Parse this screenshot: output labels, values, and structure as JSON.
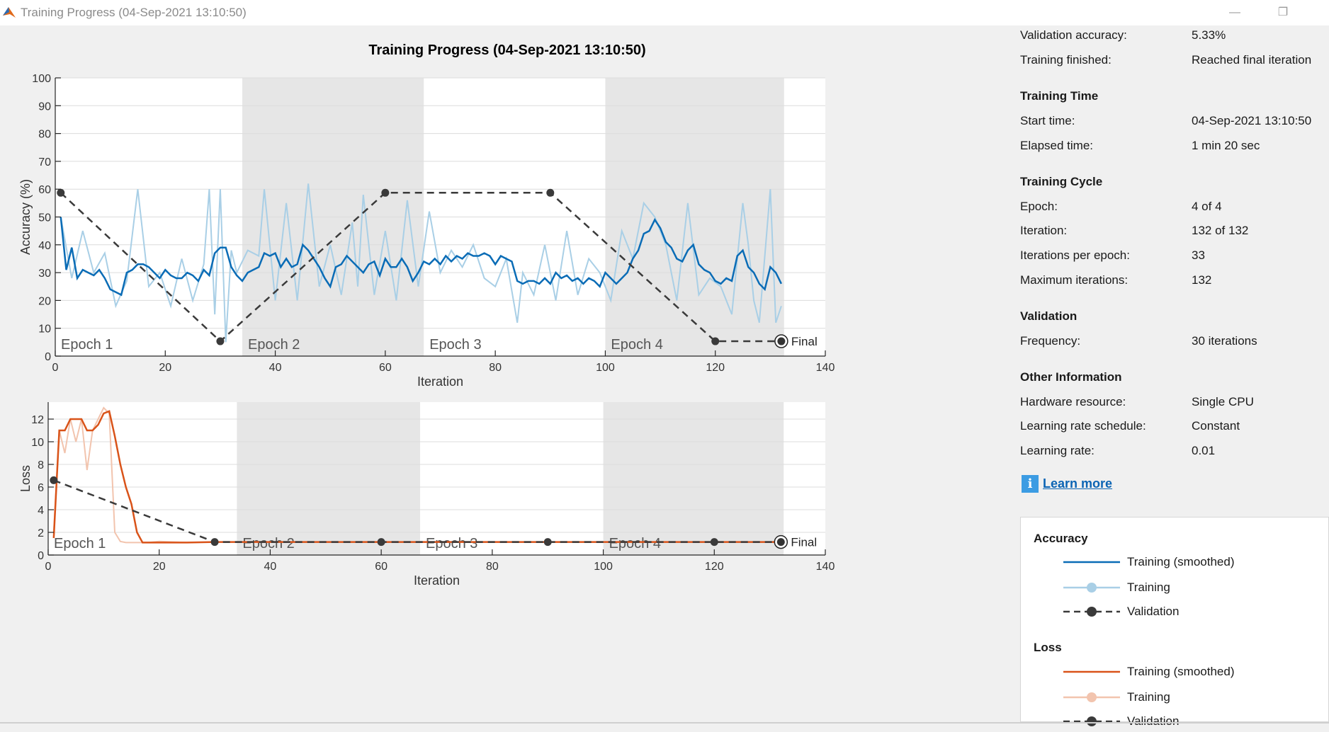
{
  "window": {
    "title": "Training Progress (04-Sep-2021 13:10:50)",
    "minimize_glyph": "—",
    "restore_glyph": "❐"
  },
  "plot_title": "Training Progress (04-Sep-2021 13:10:50)",
  "chart_data": [
    {
      "type": "line",
      "name": "accuracy-chart",
      "xlabel": "Iteration",
      "ylabel": "Accuracy (%)",
      "xlim": [
        0,
        140
      ],
      "ylim": [
        0,
        100
      ],
      "xticks": [
        0,
        20,
        40,
        60,
        80,
        100,
        120,
        140
      ],
      "yticks": [
        0,
        10,
        20,
        30,
        40,
        50,
        60,
        70,
        80,
        90,
        100
      ],
      "grid": true,
      "epoch_bands": [
        {
          "label": "Epoch 1",
          "start": 0,
          "end": 34,
          "shaded": false
        },
        {
          "label": "Epoch 2",
          "start": 34,
          "end": 67,
          "shaded": true
        },
        {
          "label": "Epoch 3",
          "start": 67,
          "end": 100,
          "shaded": false
        },
        {
          "label": "Epoch 4",
          "start": 100,
          "end": 132.5,
          "shaded": true
        }
      ],
      "final_label": "Final",
      "series": [
        {
          "name": "Training",
          "style": "raw",
          "color": "#a9cfe6",
          "x": [
            1,
            3,
            5,
            7,
            9,
            11,
            13,
            15,
            17,
            19,
            21,
            23,
            25,
            27,
            28,
            29,
            30,
            31,
            32,
            33,
            35,
            37,
            38,
            40,
            42,
            44,
            46,
            48,
            50,
            52,
            54,
            55,
            56,
            58,
            60,
            62,
            64,
            66,
            68,
            70,
            72,
            74,
            76,
            78,
            80,
            82,
            84,
            85,
            87,
            89,
            91,
            93,
            95,
            97,
            99,
            101,
            103,
            105,
            107,
            109,
            111,
            113,
            115,
            117,
            119,
            121,
            123,
            125,
            126,
            127,
            128,
            130,
            131,
            132
          ],
          "y": [
            50,
            28,
            45,
            30,
            37,
            18,
            27,
            60,
            25,
            30,
            18,
            35,
            20,
            33,
            60,
            15,
            60,
            5,
            38,
            30,
            38,
            36,
            60,
            20,
            55,
            20,
            62,
            25,
            40,
            22,
            48,
            25,
            58,
            22,
            45,
            20,
            56,
            25,
            52,
            30,
            38,
            32,
            40,
            28,
            25,
            35,
            12,
            30,
            22,
            40,
            20,
            45,
            22,
            35,
            30,
            20,
            45,
            35,
            55,
            50,
            40,
            20,
            55,
            22,
            28,
            25,
            15,
            55,
            40,
            20,
            12,
            60,
            12,
            18
          ]
        },
        {
          "name": "Training (smoothed)",
          "style": "smoothed",
          "color": "#0a6cb6",
          "x": [
            1,
            2,
            3,
            4,
            5,
            6,
            7,
            8,
            9,
            10,
            11,
            12,
            13,
            14,
            15,
            16,
            17,
            18,
            19,
            20,
            21,
            22,
            23,
            24,
            25,
            26,
            27,
            28,
            29,
            30,
            31,
            32,
            33,
            34,
            35,
            36,
            37,
            38,
            39,
            40,
            41,
            42,
            43,
            44,
            45,
            46,
            47,
            48,
            49,
            50,
            51,
            52,
            53,
            54,
            55,
            56,
            57,
            58,
            59,
            60,
            61,
            62,
            63,
            64,
            65,
            66,
            67,
            68,
            69,
            70,
            71,
            72,
            73,
            74,
            75,
            76,
            77,
            78,
            79,
            80,
            81,
            82,
            83,
            84,
            85,
            86,
            87,
            88,
            89,
            90,
            91,
            92,
            93,
            94,
            95,
            96,
            97,
            98,
            99,
            100,
            101,
            102,
            103,
            104,
            105,
            106,
            107,
            108,
            109,
            110,
            111,
            112,
            113,
            114,
            115,
            116,
            117,
            118,
            119,
            120,
            121,
            122,
            123,
            124,
            125,
            126,
            127,
            128,
            129,
            130,
            131,
            132
          ],
          "y": [
            50,
            31,
            39,
            28,
            31,
            30,
            29,
            31,
            28,
            24,
            23,
            22,
            30,
            31,
            33,
            33,
            32,
            30,
            28,
            31,
            29,
            28,
            28,
            30,
            29,
            27,
            31,
            29,
            37,
            39,
            39,
            32,
            29,
            27,
            30,
            31,
            32,
            37,
            36,
            37,
            32,
            35,
            32,
            33,
            40,
            38,
            35,
            32,
            28,
            25,
            32,
            33,
            36,
            34,
            32,
            30,
            33,
            34,
            29,
            35,
            32,
            32,
            35,
            32,
            27,
            30,
            34,
            33,
            35,
            33,
            36,
            34,
            36,
            35,
            37,
            36,
            36,
            37,
            36,
            33,
            36,
            35,
            34,
            27,
            26,
            27,
            27,
            26,
            28,
            26,
            30,
            28,
            29,
            27,
            28,
            26,
            28,
            27,
            25,
            30,
            28,
            26,
            28,
            30,
            35,
            38,
            44,
            45,
            49,
            46,
            41,
            39,
            35,
            34,
            38,
            40,
            33,
            31,
            30,
            27,
            26,
            28,
            27,
            36,
            38,
            32,
            30,
            26,
            24,
            32,
            30,
            26
          ]
        },
        {
          "name": "Validation",
          "style": "validation",
          "color": "#3a3a3a",
          "x": [
            1,
            30,
            60,
            90,
            120,
            132
          ],
          "y": [
            58.7,
            5.33,
            58.7,
            58.7,
            5.33,
            5.33
          ]
        }
      ]
    },
    {
      "type": "line",
      "name": "loss-chart",
      "xlabel": "Iteration",
      "ylabel": "Loss",
      "xlim": [
        0,
        140
      ],
      "ylim": [
        0,
        13.5
      ],
      "xticks": [
        0,
        20,
        40,
        60,
        80,
        100,
        120,
        140
      ],
      "yticks": [
        0,
        2,
        4,
        6,
        8,
        10,
        12
      ],
      "grid": true,
      "epoch_bands": [
        {
          "label": "Epoch 1",
          "start": 0,
          "end": 34,
          "shaded": false
        },
        {
          "label": "Epoch 2",
          "start": 34,
          "end": 67,
          "shaded": true
        },
        {
          "label": "Epoch 3",
          "start": 67,
          "end": 100,
          "shaded": false
        },
        {
          "label": "Epoch 4",
          "start": 100,
          "end": 132.5,
          "shaded": true
        }
      ],
      "final_label": "Final",
      "series": [
        {
          "name": "Training",
          "style": "raw",
          "color": "#f2c4ae",
          "x": [
            1,
            2,
            3,
            4,
            5,
            6,
            7,
            8,
            9,
            10,
            11,
            12,
            13,
            14,
            15,
            16,
            17,
            18,
            20,
            25,
            30,
            40,
            50,
            60,
            70,
            80,
            90,
            100,
            110,
            120,
            132
          ],
          "y": [
            2,
            11,
            9,
            12,
            10,
            12,
            7.5,
            11,
            12,
            13,
            12.5,
            2,
            1.2,
            1.1,
            1.1,
            1.1,
            1.1,
            1.1,
            1.2,
            1.1,
            1.15,
            1.15,
            1.15,
            1.15,
            1.15,
            1.15,
            1.15,
            1.15,
            1.15,
            1.15,
            1.15
          ]
        },
        {
          "name": "Training (smoothed)",
          "style": "smoothed",
          "color": "#d95319",
          "x": [
            1,
            2,
            3,
            4,
            5,
            6,
            7,
            8,
            9,
            10,
            11,
            12,
            13,
            14,
            15,
            16,
            17,
            20,
            25,
            30,
            40,
            50,
            60,
            70,
            80,
            90,
            100,
            110,
            120,
            132
          ],
          "y": [
            1.5,
            11,
            11,
            12,
            12,
            12,
            11,
            11,
            11.5,
            12.5,
            12.7,
            10.5,
            8,
            6,
            4.5,
            2,
            1.1,
            1.1,
            1.1,
            1.15,
            1.15,
            1.15,
            1.15,
            1.15,
            1.15,
            1.15,
            1.15,
            1.15,
            1.15,
            1.15
          ]
        },
        {
          "name": "Validation",
          "style": "validation",
          "color": "#3a3a3a",
          "x": [
            1,
            30,
            60,
            90,
            120,
            132
          ],
          "y": [
            6.6,
            1.15,
            1.15,
            1.15,
            1.15,
            1.15
          ]
        }
      ]
    }
  ],
  "info": {
    "validation_accuracy": {
      "label": "Validation accuracy:",
      "value": "5.33%"
    },
    "training_finished": {
      "label": "Training finished:",
      "value": "Reached final iteration"
    },
    "training_time": {
      "heading": "Training Time",
      "start_time": {
        "label": "Start time:",
        "value": "04-Sep-2021 13:10:50"
      },
      "elapsed_time": {
        "label": "Elapsed time:",
        "value": "1 min 20 sec"
      }
    },
    "training_cycle": {
      "heading": "Training Cycle",
      "epoch": {
        "label": "Epoch:",
        "value": "4 of 4"
      },
      "iteration": {
        "label": "Iteration:",
        "value": "132 of 132"
      },
      "iterations_per_epoch": {
        "label": "Iterations per epoch:",
        "value": "33"
      },
      "max_iterations": {
        "label": "Maximum iterations:",
        "value": "132"
      }
    },
    "validation": {
      "heading": "Validation",
      "frequency": {
        "label": "Frequency:",
        "value": "30 iterations"
      }
    },
    "other": {
      "heading": "Other Information",
      "hardware": {
        "label": "Hardware resource:",
        "value": "Single CPU"
      },
      "lr_schedule": {
        "label": "Learning rate schedule:",
        "value": "Constant"
      },
      "learning_rate": {
        "label": "Learning rate:",
        "value": "0.01"
      }
    },
    "learn_more": "Learn more",
    "info_glyph": "i"
  },
  "legend": {
    "accuracy_heading": "Accuracy",
    "loss_heading": "Loss",
    "accuracy_items": [
      {
        "label": "Training (smoothed)",
        "color": "#0a6cb6",
        "style": "solid"
      },
      {
        "label": "Training",
        "color": "#a9cfe6",
        "style": "marker"
      },
      {
        "label": "Validation",
        "color": "#3a3a3a",
        "style": "dashed"
      }
    ],
    "loss_items": [
      {
        "label": "Training (smoothed)",
        "color": "#d95319",
        "style": "solid"
      },
      {
        "label": "Training",
        "color": "#f2c4ae",
        "style": "marker"
      },
      {
        "label": "Validation",
        "color": "#3a3a3a",
        "style": "dashed"
      }
    ]
  }
}
